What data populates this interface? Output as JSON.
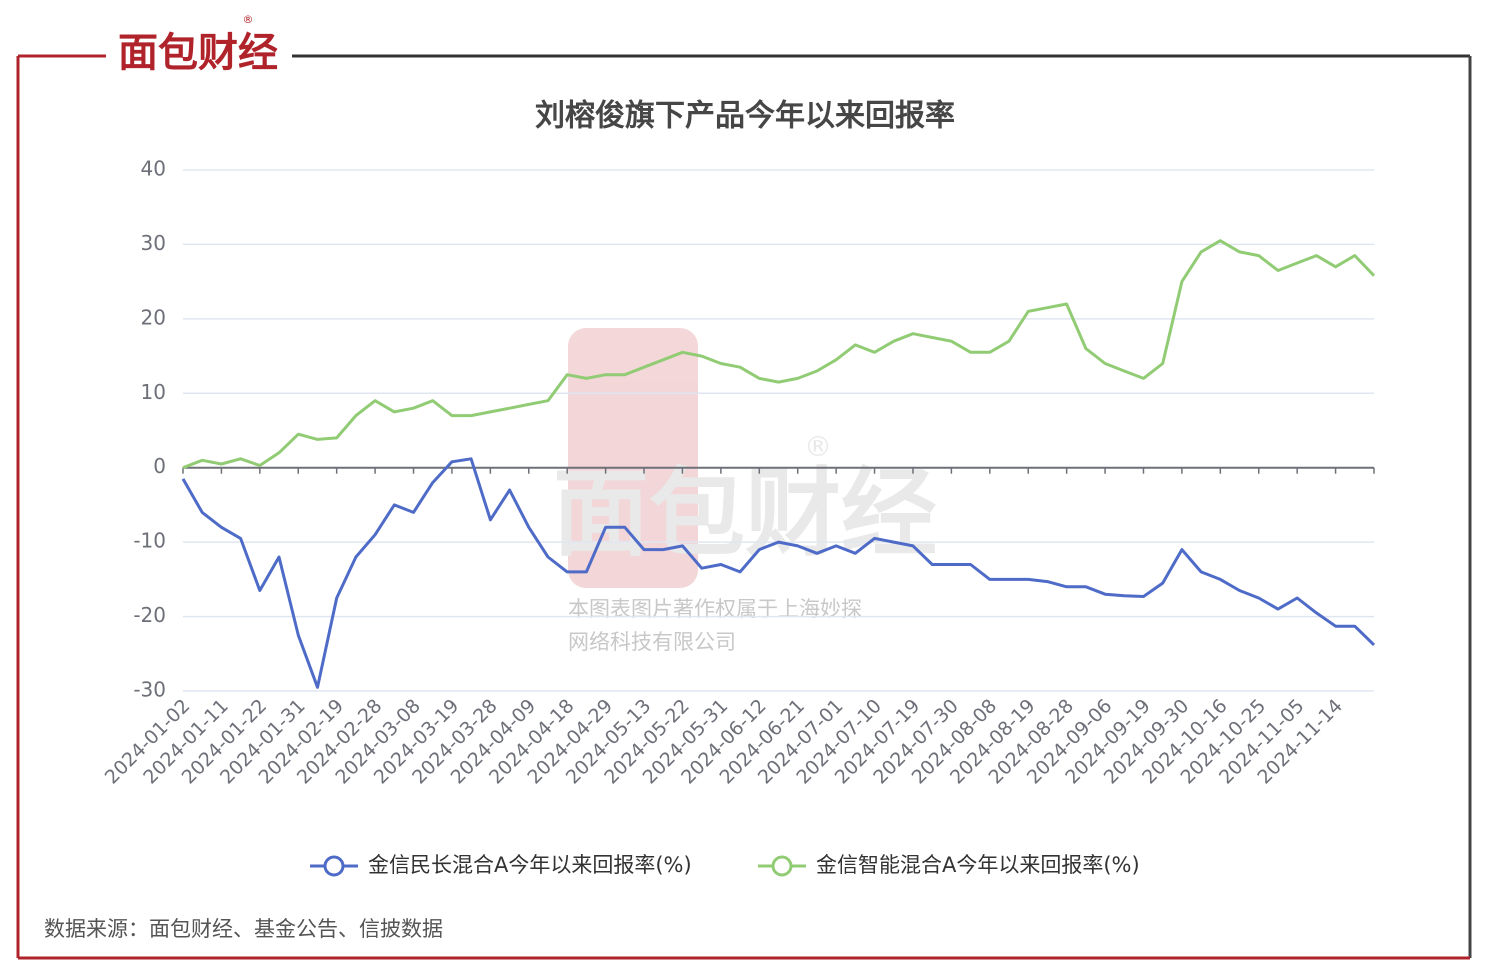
{
  "brand": {
    "name": "面包财经",
    "mark": "®"
  },
  "watermark": {
    "logo": "面包财经",
    "mark": "®",
    "line1": "本图表图片著作权属于上海妙探",
    "line2": "网络科技有限公司"
  },
  "source": "数据来源：面包财经、基金公告、信披数据",
  "chart_data": {
    "type": "line",
    "title": "刘榕俊旗下产品今年以来回报率",
    "categories": [
      "2024-01-02",
      null,
      "2024-01-11",
      null,
      "2024-01-22",
      null,
      "2024-01-31",
      null,
      "2024-02-19",
      null,
      "2024-02-28",
      null,
      "2024-03-08",
      null,
      "2024-03-19",
      null,
      "2024-03-28",
      null,
      "2024-04-09",
      null,
      "2024-04-18",
      null,
      "2024-04-29",
      null,
      "2024-05-13",
      null,
      "2024-05-22",
      null,
      "2024-05-31",
      null,
      "2024-06-12",
      null,
      "2024-06-21",
      null,
      "2024-07-01",
      null,
      "2024-07-10",
      null,
      "2024-07-19",
      null,
      "2024-07-30",
      null,
      "2024-08-08",
      null,
      "2024-08-19",
      null,
      "2024-08-28",
      null,
      "2024-09-06",
      null,
      "2024-09-19",
      null,
      "2024-09-30",
      null,
      "2024-10-16",
      null,
      "2024-10-25",
      null,
      "2024-11-05",
      null,
      "2024-11-14",
      null,
      null
    ],
    "series": [
      {
        "name": "金信民长混合A今年以来回报率(%)",
        "color": "#4e6bc8",
        "values": [
          -1.5,
          -6,
          -8,
          -9.5,
          -16.5,
          -12,
          -22.5,
          -29.5,
          -17.5,
          -12,
          -9,
          -5,
          -6,
          -2,
          0.8,
          1.2,
          -7,
          -3,
          -8,
          -12,
          -14,
          -14,
          -8,
          -8,
          -11,
          -11,
          -10.5,
          -13.5,
          -13,
          -14,
          -11,
          -10,
          -10.5,
          -11.5,
          -10.5,
          -11.5,
          -9.5,
          -10,
          -10.5,
          -13,
          -13,
          -13,
          -15,
          -15,
          -15,
          -15.3,
          -16,
          -16,
          -17,
          -17.2,
          -17.3,
          -15.5,
          -11,
          -14,
          -15,
          -16.5,
          -17.5,
          -19,
          -17.5,
          -19.5,
          -21.3,
          -21.3,
          -23.8
        ]
      },
      {
        "name": "金信智能混合A今年以来回报率(%)",
        "color": "#91cc75",
        "values": [
          0,
          1,
          0.5,
          1.2,
          0.3,
          2,
          4.5,
          3.8,
          4,
          7,
          9,
          7.5,
          8,
          9,
          7,
          7,
          7.5,
          8,
          8.5,
          9,
          12.5,
          12,
          12.5,
          12.5,
          13.5,
          14.5,
          15.5,
          15,
          14,
          13.5,
          12,
          11.5,
          12,
          13,
          14.5,
          16.5,
          15.5,
          17,
          18,
          17.5,
          17,
          15.5,
          15.5,
          17,
          21,
          21.5,
          22,
          16,
          14,
          13,
          12,
          14,
          25,
          29,
          30.5,
          29,
          28.5,
          26.5,
          27.5,
          28.5,
          27,
          28.5,
          25.8
        ]
      }
    ],
    "ylim": [
      -30,
      40
    ],
    "yticks": [
      -30,
      -20,
      -10,
      0,
      10,
      20,
      30,
      40
    ],
    "grid": true,
    "legend": "bottom"
  }
}
